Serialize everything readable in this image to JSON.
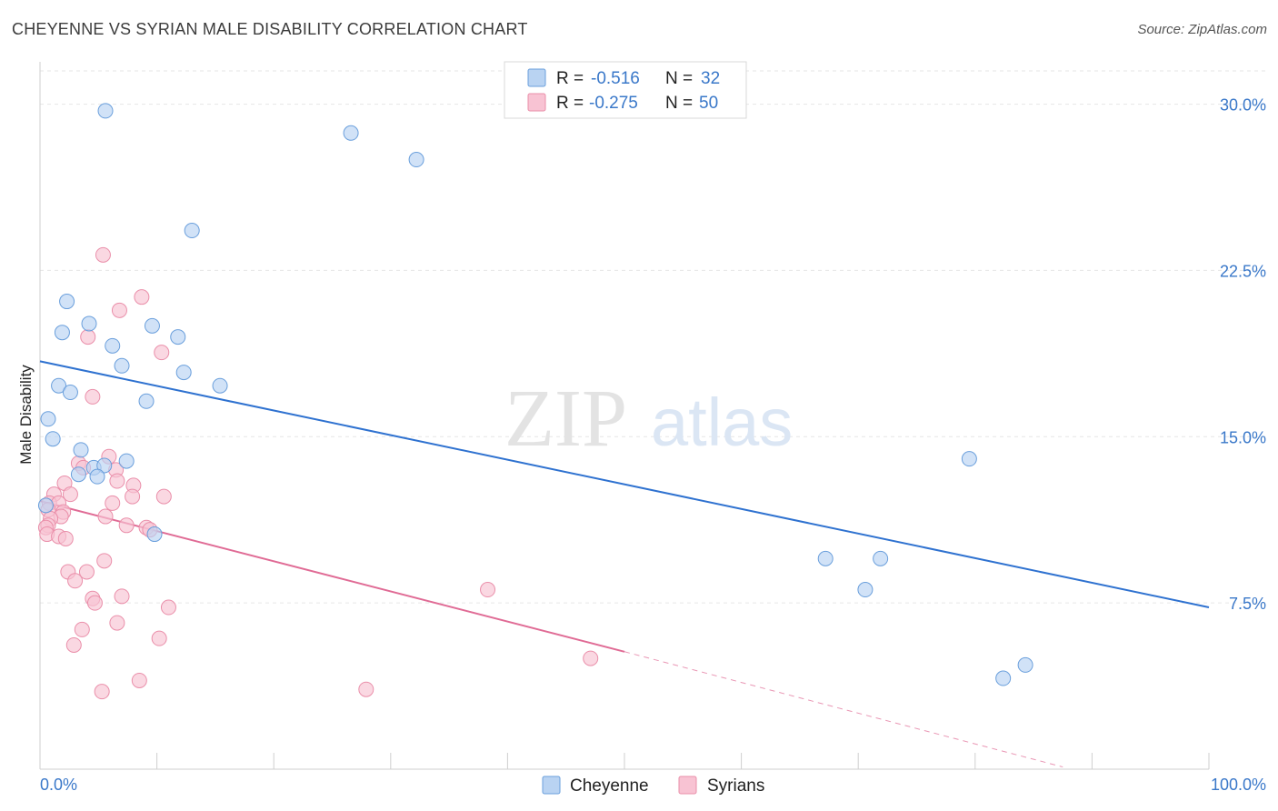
{
  "title": "CHEYENNE VS SYRIAN MALE DISABILITY CORRELATION CHART",
  "source": "Source: ZipAtlas.com",
  "watermark": {
    "zip": "ZIP",
    "atlas": "atlas"
  },
  "colors": {
    "cheyenne_fill": "#b9d3f2",
    "cheyenne_stroke": "#6a9fdc",
    "cheyenne_line": "#2f72d0",
    "syrians_fill": "#f8c3d3",
    "syrians_stroke": "#ea8faa",
    "syrians_line": "#e06b95",
    "tick_label": "#3a78c9"
  },
  "legend": {
    "r_label": "R =",
    "n_label": "N =",
    "cheyenne": {
      "r": "-0.516",
      "n": "32"
    },
    "syrians": {
      "r": "-0.275",
      "n": "50"
    }
  },
  "chart_data": {
    "type": "scatter",
    "title": "CHEYENNE VS SYRIAN MALE DISABILITY CORRELATION CHART",
    "xlabel": "",
    "ylabel": "Male Disability",
    "xlim": [
      0,
      100
    ],
    "ylim": [
      0,
      31.5
    ],
    "x_tick_labels": [
      "0.0%",
      "100.0%"
    ],
    "y_ticks": [
      7.5,
      15.0,
      22.5,
      30.0
    ],
    "y_tick_labels": [
      "7.5%",
      "15.0%",
      "22.5%",
      "30.0%"
    ],
    "grid": true,
    "series": [
      {
        "name": "Cheyenne",
        "regression": {
          "x0": 0,
          "y0": 18.4,
          "x1": 100,
          "y1": 7.3
        },
        "points": [
          [
            5.6,
            29.7
          ],
          [
            26.6,
            28.7
          ],
          [
            32.2,
            27.5
          ],
          [
            13.0,
            24.3
          ],
          [
            2.3,
            21.1
          ],
          [
            4.2,
            20.1
          ],
          [
            1.9,
            19.7
          ],
          [
            9.6,
            20.0
          ],
          [
            11.8,
            19.5
          ],
          [
            6.2,
            19.1
          ],
          [
            7.0,
            18.2
          ],
          [
            12.3,
            17.9
          ],
          [
            1.6,
            17.3
          ],
          [
            15.4,
            17.3
          ],
          [
            2.6,
            17.0
          ],
          [
            9.1,
            16.6
          ],
          [
            0.7,
            15.8
          ],
          [
            1.1,
            14.9
          ],
          [
            3.5,
            14.4
          ],
          [
            7.4,
            13.9
          ],
          [
            4.6,
            13.6
          ],
          [
            3.3,
            13.3
          ],
          [
            5.5,
            13.7
          ],
          [
            4.9,
            13.2
          ],
          [
            0.5,
            11.9
          ],
          [
            9.8,
            10.6
          ],
          [
            79.5,
            14.0
          ],
          [
            67.2,
            9.5
          ],
          [
            71.9,
            9.5
          ],
          [
            70.6,
            8.1
          ],
          [
            82.4,
            4.1
          ],
          [
            84.3,
            4.7
          ]
        ]
      },
      {
        "name": "Syrians",
        "regression": {
          "x0": 0,
          "y0": 12.1,
          "x1": 50,
          "y1": 5.3
        },
        "regression_dashed": {
          "x0": 50,
          "y0": 5.3,
          "x1": 87.5,
          "y1": 0.1
        },
        "points": [
          [
            5.4,
            23.2
          ],
          [
            8.7,
            21.3
          ],
          [
            6.8,
            20.7
          ],
          [
            4.1,
            19.5
          ],
          [
            10.4,
            18.8
          ],
          [
            4.5,
            16.8
          ],
          [
            5.9,
            14.1
          ],
          [
            3.3,
            13.8
          ],
          [
            6.5,
            13.5
          ],
          [
            3.7,
            13.6
          ],
          [
            6.6,
            13.0
          ],
          [
            2.1,
            12.9
          ],
          [
            8.0,
            12.8
          ],
          [
            1.2,
            12.4
          ],
          [
            2.6,
            12.4
          ],
          [
            7.9,
            12.3
          ],
          [
            10.6,
            12.3
          ],
          [
            6.2,
            12.0
          ],
          [
            0.8,
            12.0
          ],
          [
            1.6,
            12.0
          ],
          [
            0.7,
            11.7
          ],
          [
            2.0,
            11.6
          ],
          [
            1.8,
            11.4
          ],
          [
            0.9,
            11.3
          ],
          [
            5.6,
            11.4
          ],
          [
            0.7,
            11.0
          ],
          [
            0.5,
            10.9
          ],
          [
            7.4,
            11.0
          ],
          [
            9.1,
            10.9
          ],
          [
            9.4,
            10.8
          ],
          [
            0.6,
            10.6
          ],
          [
            1.6,
            10.5
          ],
          [
            2.2,
            10.4
          ],
          [
            5.5,
            9.4
          ],
          [
            2.4,
            8.9
          ],
          [
            4.0,
            8.9
          ],
          [
            3.0,
            8.5
          ],
          [
            7.0,
            7.8
          ],
          [
            4.5,
            7.7
          ],
          [
            11.0,
            7.3
          ],
          [
            4.7,
            7.5
          ],
          [
            6.6,
            6.6
          ],
          [
            3.6,
            6.3
          ],
          [
            10.2,
            5.9
          ],
          [
            2.9,
            5.6
          ],
          [
            38.3,
            8.1
          ],
          [
            47.1,
            5.0
          ],
          [
            8.5,
            4.0
          ],
          [
            5.3,
            3.5
          ],
          [
            27.9,
            3.6
          ]
        ]
      }
    ]
  }
}
